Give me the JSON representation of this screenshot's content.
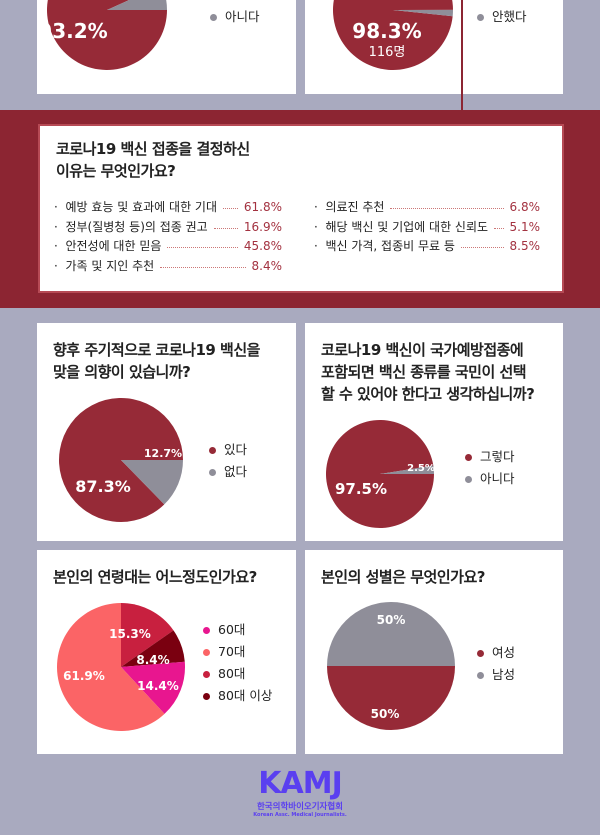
{
  "colors": {
    "main": "#962a37",
    "gray": "#8f8e99",
    "bg": "#a9aabf"
  },
  "top_left": {
    "legend": [
      "아니다"
    ],
    "chart_data": {
      "type": "pie",
      "labels": [
        "",
        "아니다"
      ],
      "values": [
        93.2,
        6.8
      ],
      "value_labels": [
        "93.2%",
        "6.8%"
      ]
    }
  },
  "top_right": {
    "legend": [
      "안했다"
    ],
    "count_label": "116명",
    "chart_data": {
      "type": "pie",
      "labels": [
        "",
        "안했다"
      ],
      "values": [
        98.3,
        1.7
      ],
      "value_labels": [
        "98.3%",
        "1.7%"
      ]
    }
  },
  "reasons": {
    "title_1": "코로나19 백신 접종을 결정하신",
    "title_2": "이유는 무엇인가요?",
    "left": [
      {
        "label": "예방 효능 및 효과에 대한 기대",
        "value": "61.8%"
      },
      {
        "label": "정부(질병청 등)의 접종 권고",
        "value": "16.9%"
      },
      {
        "label": "안전성에 대한 믿음",
        "value": "45.8%"
      },
      {
        "label": "가족 및 지인 추천",
        "value": "8.4%"
      }
    ],
    "right": [
      {
        "label": "의료진 추천",
        "value": "6.8%"
      },
      {
        "label": "해당 백신 및 기업에 대한 신뢰도",
        "value": "5.1%"
      },
      {
        "label": "백신 가격, 접종비 무료 등",
        "value": "8.5%"
      }
    ]
  },
  "periodic": {
    "title_1": "향후 주기적으로 코로나19 백신을",
    "title_2": "맞을 의향이 있습니까?",
    "legend": [
      "있다",
      "없다"
    ],
    "chart_data": {
      "type": "pie",
      "labels": [
        "있다",
        "없다"
      ],
      "values": [
        87.3,
        12.7
      ],
      "value_labels": [
        "87.3%",
        "12.7%"
      ]
    }
  },
  "choice": {
    "title_1": "코로나19 백신이 국가예방접종에",
    "title_2": "포함되면 백신 종류를 국민이 선택",
    "title_3": "할 수 있어야 한다고 생각하십니까?",
    "legend": [
      "그렇다",
      "아니다"
    ],
    "chart_data": {
      "type": "pie",
      "labels": [
        "그렇다",
        "아니다"
      ],
      "values": [
        97.5,
        2.5
      ],
      "value_labels": [
        "97.5%",
        "2.5%"
      ]
    }
  },
  "age": {
    "title": "본인의 연령대는 어느정도인가요?",
    "legend": [
      "60대",
      "70대",
      "80대",
      "80대 이상"
    ],
    "legend_colors": [
      "#e8168f",
      "#fb6466",
      "#c8203f",
      "#7a0010"
    ],
    "chart_data": {
      "type": "pie",
      "labels": [
        "80대",
        "80대 이상",
        "60대",
        "70대"
      ],
      "values": [
        15.3,
        8.4,
        14.4,
        61.9
      ],
      "value_labels": [
        "15.3%",
        "8.4%",
        "14.4%",
        "61.9%"
      ],
      "colors": [
        "#c8203f",
        "#7a0010",
        "#e8168f",
        "#fb6466"
      ]
    }
  },
  "gender": {
    "title": "본인의 성별은 무엇인가요?",
    "legend": [
      "여성",
      "남성"
    ],
    "chart_data": {
      "type": "pie",
      "labels": [
        "남성",
        "여성"
      ],
      "values": [
        50,
        50
      ],
      "value_labels": [
        "50%",
        "50%"
      ]
    }
  },
  "logo": {
    "text": "KAMJ",
    "sub": "한국의학바이오기자협회",
    "eng": "Korean Assc. Medical Journalists."
  }
}
